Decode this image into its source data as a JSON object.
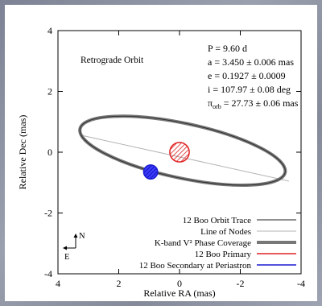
{
  "chart_data": {
    "type": "scatter",
    "annotation": "Retrograde Orbit",
    "xlabel": "Relative RA (mas)",
    "ylabel": "Relative Dec (mas)",
    "xlim": [
      4,
      -4
    ],
    "ylim": [
      -4,
      4
    ],
    "x_ticks": [
      4,
      2,
      0,
      -2,
      -4
    ],
    "y_ticks": [
      -4,
      -2,
      0,
      2,
      4
    ],
    "x_tick_labels": [
      "4",
      "2",
      "0",
      "-2",
      "-4"
    ],
    "y_tick_labels": [
      "-4",
      "-2",
      "0",
      "2",
      "4"
    ],
    "grid": false,
    "orbit_ellipse": {
      "center": [
        -0.1,
        0.05
      ],
      "semi_major": 3.45,
      "semi_minor": 0.9,
      "rotation_deg": 12
    },
    "line_of_nodes": {
      "from": [
        3.2,
        0.55
      ],
      "to": [
        -3.6,
        -0.95
      ]
    },
    "primary": {
      "x": 0.0,
      "y": 0.0,
      "radius": 0.32
    },
    "secondary_periastron": {
      "x": 0.95,
      "y": -0.65,
      "radius": 0.23
    },
    "parameters": [
      "P = 9.60 d",
      "a = 3.450 ± 0.006 mas",
      "e = 0.1927 ± 0.0009",
      "i = 107.97 ± 0.08 deg",
      "π_orb = 27.73 ± 0.06 mas"
    ],
    "legend": {
      "position": "bottom-right",
      "entries": [
        {
          "label": "12 Boo Orbit Trace",
          "color": "#222222",
          "width": 1
        },
        {
          "label": "Line of Nodes",
          "color": "#b4b4b4",
          "width": 1
        },
        {
          "label": "K-band V² Phase Coverage",
          "color": "#777777",
          "width": 4
        },
        {
          "label": "12 Boo Primary",
          "color": "#e02020",
          "width": 1.5
        },
        {
          "label": "12 Boo Secondary at Periastron",
          "color": "#1a1ad0",
          "width": 1.5
        }
      ]
    },
    "compass": {
      "north": "N",
      "east": "E"
    }
  },
  "colors": {
    "primary": "#e02020",
    "secondary": "#1a1ad0",
    "orbit": "#6e6e6e",
    "nodes": "#b4b4b4"
  }
}
